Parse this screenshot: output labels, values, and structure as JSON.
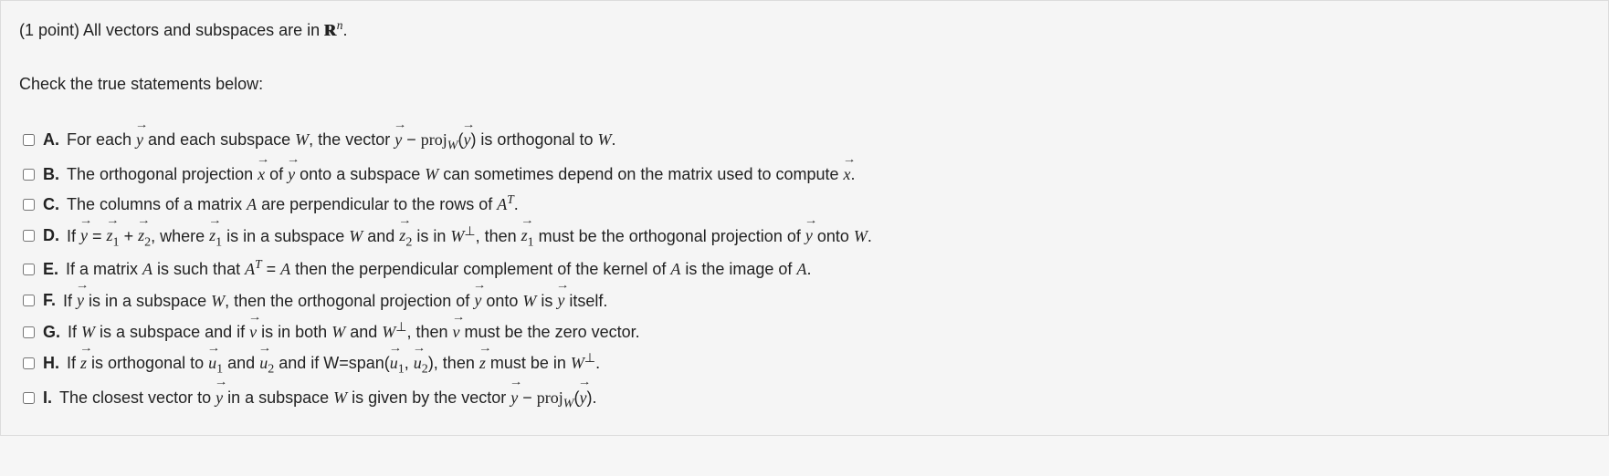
{
  "preamble": {
    "points_prefix": "(1 point) All vectors and subspaces are in ",
    "space_symbol_html": "<span class='bb'>R</span><span class='sup'>n</span>",
    "period": "."
  },
  "instructions": "Check the true statements below:",
  "options": [
    {
      "letter": "A.",
      "html": "For each <span class='vec'>y</span> and each subspace <span class='math-italic'>W</span>, the vector <span class='vec'>y</span> − <span class='math-roman'>proj</span><span class='sub'><i>W</i></span>(<span class='vec'>y</span>) is orthogonal to <span class='math-italic'>W</span>."
    },
    {
      "letter": "B.",
      "html": "The orthogonal projection <span class='vec'>x</span> of <span class='vec'>y</span> onto a subspace <span class='math-italic'>W</span> can sometimes depend on the matrix used to compute <span class='vec'>x</span>."
    },
    {
      "letter": "C.",
      "html": "The columns of a matrix <span class='math-italic'>A</span> are perpendicular to the rows of <span class='math-italic'>A</span><span class='sup'>T</span>."
    },
    {
      "letter": "D.",
      "html": "If <span class='vec'>y</span> = <span class='vec'>z</span><span class='sub'>1</span> + <span class='vec'>z</span><span class='sub'>2</span>, where <span class='vec'>z</span><span class='sub'>1</span> is in a subspace <span class='math-italic'>W</span> and <span class='vec'>z</span><span class='sub'>2</span> is in <span class='math-italic'>W</span><span class='perp-sup'>⊥</span>, then <span class='vec'>z</span><span class='sub'>1</span> must be the orthogonal projection of <span class='vec'>y</span> onto <span class='math-italic'>W</span>."
    },
    {
      "letter": "E.",
      "html": "If a matrix <span class='math-italic'>A</span> is such that <span class='math-italic'>A</span><span class='sup'>T</span> = <span class='math-italic'>A</span> then the perpendicular complement of the kernel of <span class='math-italic'>A</span> is the image of <span class='math-italic'>A</span>."
    },
    {
      "letter": "F.",
      "html": "If <span class='vec'>y</span> is in a subspace <span class='math-italic'>W</span>, then the orthogonal projection of <span class='vec'>y</span> onto <span class='math-italic'>W</span> is <span class='vec'>y</span> itself."
    },
    {
      "letter": "G.",
      "html": "If <span class='math-italic'>W</span> is a subspace and if <span class='vec'>v</span> is in both <span class='math-italic'>W</span> and <span class='math-italic'>W</span><span class='perp-sup'>⊥</span>, then <span class='vec'>v</span> must be the zero vector."
    },
    {
      "letter": "H.",
      "html": "If <span class='vec'>z</span> is orthogonal to <span class='vec'>u</span><span class='sub'>1</span> and <span class='vec'>u</span><span class='sub'>2</span> and if W=span(<span class='vec'>u</span><span class='sub'>1</span>, <span class='vec'>u</span><span class='sub'>2</span>), then <span class='vec'>z</span> must be in <span class='math-italic'>W</span><span class='perp-sup'>⊥</span>."
    },
    {
      "letter": "I.",
      "html": "The closest vector to <span class='vec'>y</span> in a subspace <span class='math-italic'>W</span> is given by the vector <span class='vec'>y</span> − <span class='math-roman'>proj</span><span class='sub'><i>W</i></span>(<span class='vec'>y</span>)."
    }
  ]
}
